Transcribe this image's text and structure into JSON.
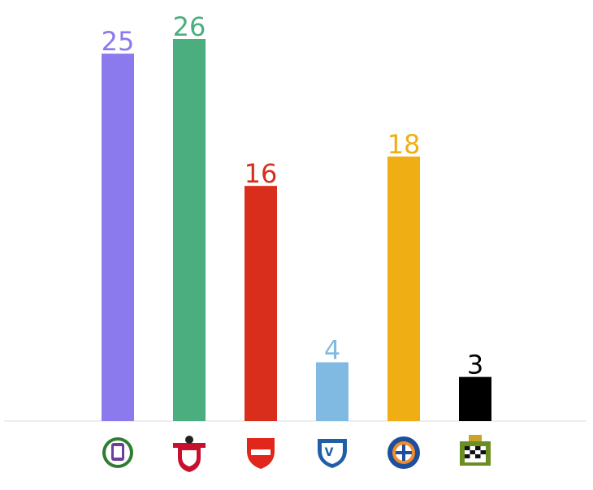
{
  "chart_data": {
    "type": "bar",
    "categories": [
      null,
      null,
      null,
      null,
      null,
      null
    ],
    "values": [
      25,
      26,
      16,
      4,
      18,
      3
    ],
    "colors": [
      "#8b79ee",
      "#4aae7e",
      "#d92e1c",
      "#80b9e2",
      "#efae14",
      "#000000"
    ],
    "ylim": [
      0,
      26
    ]
  }
}
